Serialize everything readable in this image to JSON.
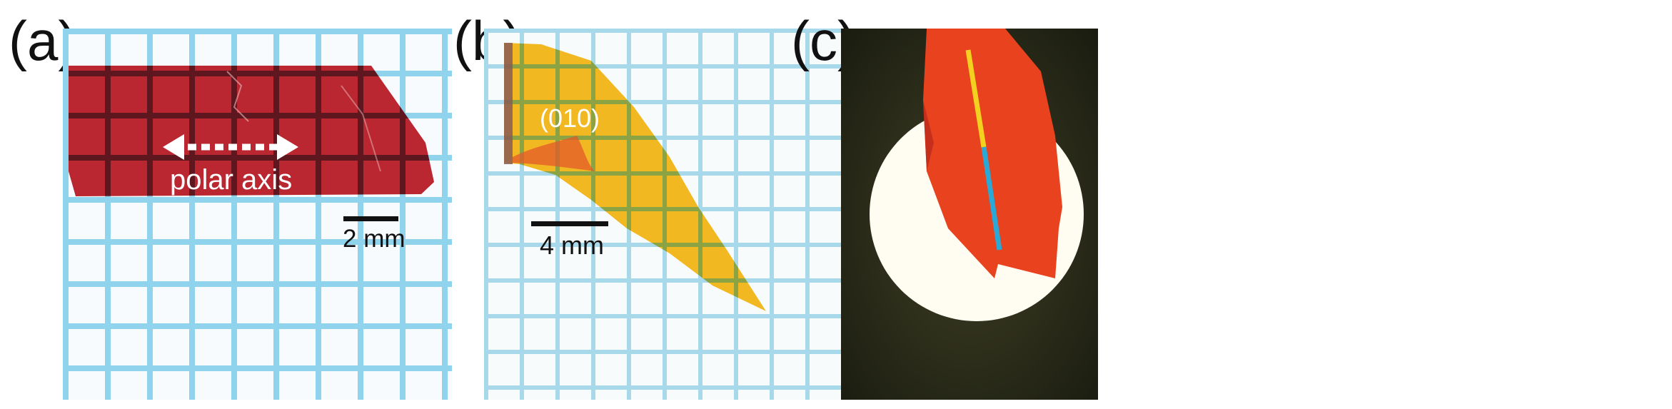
{
  "panels": [
    {
      "label": "(a)",
      "axis_label": "polar axis",
      "scale_bar": "2 mm"
    },
    {
      "label": "(b)",
      "face_label": "(010)",
      "scale_bar": "4 mm"
    },
    {
      "label": "(c)"
    }
  ],
  "colors": {
    "grid_blue": "#8fd3ec",
    "crystal_red": "#b5141f",
    "crystal_yellow": "#f0b41a",
    "line_yellow": "#f2d21e",
    "line_cyan": "#2aa9d6"
  }
}
